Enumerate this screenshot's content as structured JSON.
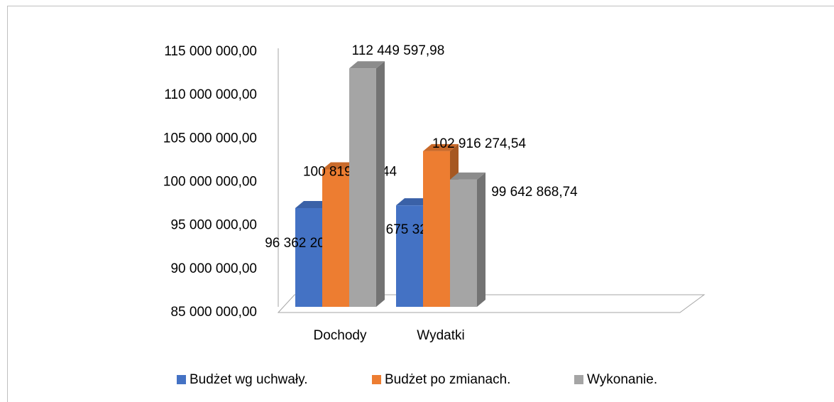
{
  "chart_data": {
    "type": "bar3d",
    "categories": [
      "Dochody",
      "Wydatki"
    ],
    "series": [
      {
        "name": "Budżet wg uchwały.",
        "color": "#4472c4",
        "values": [
          96362208.77,
          96675329.91
        ],
        "value_labels": [
          "96 362 208,77",
          "96 675 329,91"
        ]
      },
      {
        "name": "Budżet po zmianach.",
        "color": "#ed7d31",
        "values": [
          100819580.44,
          102916274.54
        ],
        "value_labels": [
          "100 819 580,44",
          "102 916 274,54"
        ]
      },
      {
        "name": "Wykonanie.",
        "color": "#a5a5a5",
        "values": [
          112449597.98,
          99642868.74
        ],
        "value_labels": [
          "112 449 597,98",
          "99 642 868,74"
        ]
      }
    ],
    "ylim": [
      85000000,
      115000000
    ],
    "yticks": [
      {
        "value": 85000000,
        "label": "85 000 000,00"
      },
      {
        "value": 90000000,
        "label": "90 000 000,00"
      },
      {
        "value": 95000000,
        "label": "95 000 000,00"
      },
      {
        "value": 100000000,
        "label": "100 000 000,00"
      },
      {
        "value": 105000000,
        "label": "105 000 000,00"
      },
      {
        "value": 110000000,
        "label": "110 000 000,00"
      },
      {
        "value": 115000000,
        "label": "115 000 000,00"
      }
    ],
    "legend": "bottom"
  }
}
